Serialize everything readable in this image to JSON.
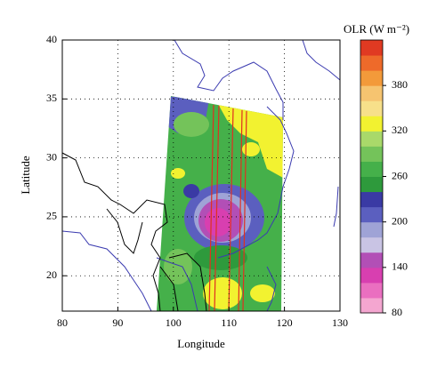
{
  "chart_data": {
    "type": "map",
    "xlabel": "Longitude",
    "ylabel": "Latitude",
    "xlim": [
      80,
      130
    ],
    "ylim": [
      17,
      40
    ],
    "xticks": [
      80,
      90,
      100,
      110,
      120,
      130
    ],
    "yticks": [
      20,
      25,
      30,
      35,
      40
    ],
    "grid": true,
    "colorbar": {
      "label": "OLR (W m⁻²)",
      "lim": [
        80,
        440
      ],
      "ticks": [
        80,
        140,
        200,
        260,
        320,
        380
      ],
      "colors": [
        "#f4a6d0",
        "#ea6fc0",
        "#d83fb0",
        "#b24fb6",
        "#c9c4e4",
        "#9fa3d6",
        "#5b5fbf",
        "#3a3aa4",
        "#2e9a3c",
        "#45b04a",
        "#74c35a",
        "#a9d96a",
        "#f2f230",
        "#f7e08a",
        "#f6c470",
        "#f39a3a",
        "#ee6a2a",
        "#e03a22"
      ]
    }
  }
}
